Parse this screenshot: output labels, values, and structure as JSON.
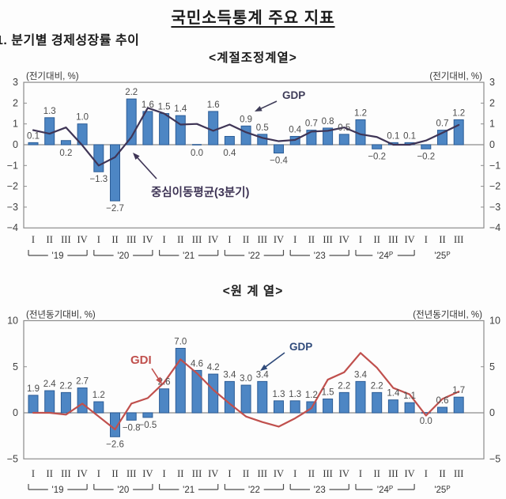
{
  "page": {
    "title": "국민소득통계 주요 지표",
    "section": "1. 분기별 경제성장률 추이"
  },
  "colors": {
    "bar_fill": "#4d86c4",
    "bar_border": "#2c5d97",
    "ma_line": "#3f3556",
    "gdi_line": "#c0504d",
    "axis": "#8c8c8c",
    "label_text": "#4d4d4d",
    "tick_text": "#404040"
  },
  "chart_data": [
    {
      "type": "bar",
      "title": "<계절조정계열>",
      "unit_left": "(전기대비, %)",
      "unit_right": "(전기대비, %)",
      "ylim": [
        -4,
        3
      ],
      "yticks": [
        3,
        2,
        1,
        0,
        -1,
        -2,
        -3,
        -4
      ],
      "grid": false,
      "quarter_numerals": [
        "I",
        "II",
        "III",
        "IV"
      ],
      "year_groups": [
        {
          "label": "'19",
          "quarters": 4,
          "bracket": true
        },
        {
          "label": "'20",
          "quarters": 4,
          "bracket": true
        },
        {
          "label": "'21",
          "quarters": 4,
          "bracket": true
        },
        {
          "label": "'22",
          "quarters": 4,
          "bracket": true
        },
        {
          "label": "'23",
          "quarters": 4,
          "bracket": true
        },
        {
          "label": "'24",
          "sup": "P",
          "quarters": 4,
          "bracket": true
        },
        {
          "label": "'25",
          "sup": "P",
          "quarters": 3,
          "bracket": false
        }
      ],
      "series": [
        {
          "name": "GDP",
          "kind": "bar",
          "values": [
            0.1,
            1.3,
            0.2,
            1.0,
            -1.3,
            -2.7,
            2.2,
            1.6,
            1.5,
            1.4,
            0.0,
            1.6,
            0.4,
            0.9,
            0.5,
            -0.4,
            0.4,
            0.7,
            0.8,
            0.5,
            1.2,
            -0.2,
            0.1,
            0.1,
            -0.2,
            0.7,
            1.2
          ]
        },
        {
          "name": "중심이동평균(3분기)",
          "kind": "line",
          "derived": "3-quarter centered moving average of GDP",
          "values": [
            0.7,
            0.53,
            0.83,
            -0.03,
            -1.0,
            -0.6,
            0.37,
            1.77,
            1.5,
            0.97,
            1.0,
            0.67,
            0.97,
            0.6,
            0.33,
            0.17,
            0.23,
            0.63,
            0.67,
            0.83,
            0.5,
            0.37,
            0.0,
            0.0,
            0.2,
            0.57,
            0.95
          ]
        }
      ],
      "label_below_indices": [
        2,
        10,
        12
      ],
      "annotations": [
        {
          "name": "gdp-label",
          "text": "GDP",
          "x": 357,
          "y": 39,
          "fs": 13.5,
          "color": "#3e3c58",
          "arrow": [
            350,
            42,
            322,
            55
          ]
        },
        {
          "name": "ma-label",
          "text": "중심이동평균(3분기)",
          "x": 191,
          "y": 162,
          "fs": 14.5,
          "color": "#3f3556",
          "arrow": [
            198,
            140,
            168,
            107
          ]
        }
      ]
    },
    {
      "type": "bar",
      "title": "<원 계 열>",
      "unit_left": "(전년동기대비, %)",
      "unit_right": "(전년동기대비, %)",
      "ylim": [
        -5,
        10
      ],
      "yticks": [
        10,
        5,
        0,
        -5
      ],
      "grid": false,
      "quarter_numerals": [
        "I",
        "II",
        "III",
        "IV"
      ],
      "year_groups": [
        {
          "label": "'19",
          "quarters": 4,
          "bracket": true
        },
        {
          "label": "'20",
          "quarters": 4,
          "bracket": true
        },
        {
          "label": "'21",
          "quarters": 4,
          "bracket": true
        },
        {
          "label": "'22",
          "quarters": 4,
          "bracket": true
        },
        {
          "label": "'23",
          "quarters": 4,
          "bracket": true
        },
        {
          "label": "'24",
          "sup": "P",
          "quarters": 4,
          "bracket": true
        },
        {
          "label": "'25",
          "sup": "P",
          "quarters": 3,
          "bracket": false
        }
      ],
      "series": [
        {
          "name": "GDP",
          "kind": "bar",
          "values": [
            1.9,
            2.4,
            2.2,
            2.7,
            1.2,
            -2.6,
            -0.8,
            -0.5,
            2.6,
            7.0,
            4.6,
            4.2,
            3.4,
            3.0,
            3.4,
            1.3,
            1.3,
            1.2,
            1.5,
            2.2,
            3.4,
            2.2,
            1.4,
            1.1,
            0.0,
            0.6,
            1.7
          ]
        },
        {
          "name": "GDI",
          "kind": "line",
          "estimated": true,
          "values": [
            0.0,
            0.0,
            -0.2,
            1.0,
            -0.4,
            -1.8,
            1.0,
            1.6,
            3.3,
            5.8,
            4.3,
            2.5,
            1.0,
            -0.4,
            -1.0,
            -1.5,
            -0.6,
            0.5,
            3.6,
            4.4,
            6.5,
            4.9,
            2.7,
            2.0,
            -0.3,
            1.5,
            2.3
          ]
        }
      ],
      "label_below_indices": [
        24
      ],
      "annotations": [
        {
          "name": "gdi-label",
          "text": "GDI",
          "x": 165,
          "y": 76,
          "fs": 15,
          "color": "#c0504d",
          "arrow": [
            192,
            82,
            205,
            102
          ]
        },
        {
          "name": "gdp-label",
          "text": "GDP",
          "x": 366,
          "y": 59,
          "fs": 13.5,
          "color": "#2f4a7a",
          "arrow": [
            360,
            62,
            329,
            85
          ]
        }
      ]
    }
  ]
}
